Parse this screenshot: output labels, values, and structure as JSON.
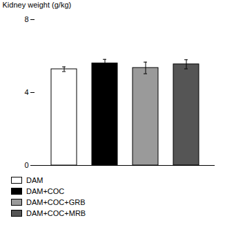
{
  "chart_data": {
    "type": "bar",
    "categories": [
      "DAM",
      "DAM+COC",
      "DAM+COC+GRB",
      "DAM+COC+MRB"
    ],
    "values": [
      5.28,
      5.6,
      5.35,
      5.55
    ],
    "errors": [
      0.13,
      0.22,
      0.32,
      0.25
    ],
    "colors": [
      "#ffffff",
      "#000000",
      "#9a9a9a",
      "#555555"
    ],
    "ylabel": "Kidney weight (g/kg)",
    "ylim": [
      0,
      8
    ],
    "yticks": [
      0,
      4,
      8
    ],
    "legend": "bottom",
    "tick_labels": "y"
  }
}
